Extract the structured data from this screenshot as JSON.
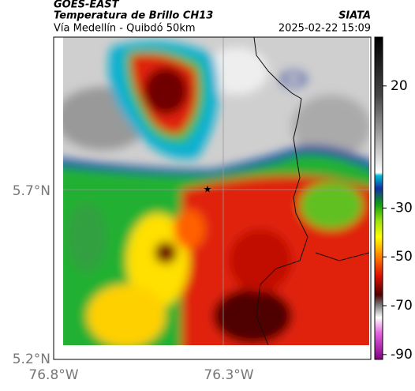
{
  "header": {
    "title": "GOES-EAST",
    "subtitle": "Temperatura de Brillo CH13",
    "source": "SIATA",
    "location": "Vía Medellín - Quibdó 50km",
    "datetime": "2025-02-22 15:09"
  },
  "map": {
    "lat_labels": [
      "5.7°N",
      "5.2°N"
    ],
    "lon_labels": [
      "76.8°W",
      "76.3°W"
    ]
  },
  "colorbar": {
    "lim": [
      -92,
      40
    ],
    "ticks": [
      20,
      -30,
      -50,
      -70,
      -90
    ]
  }
}
